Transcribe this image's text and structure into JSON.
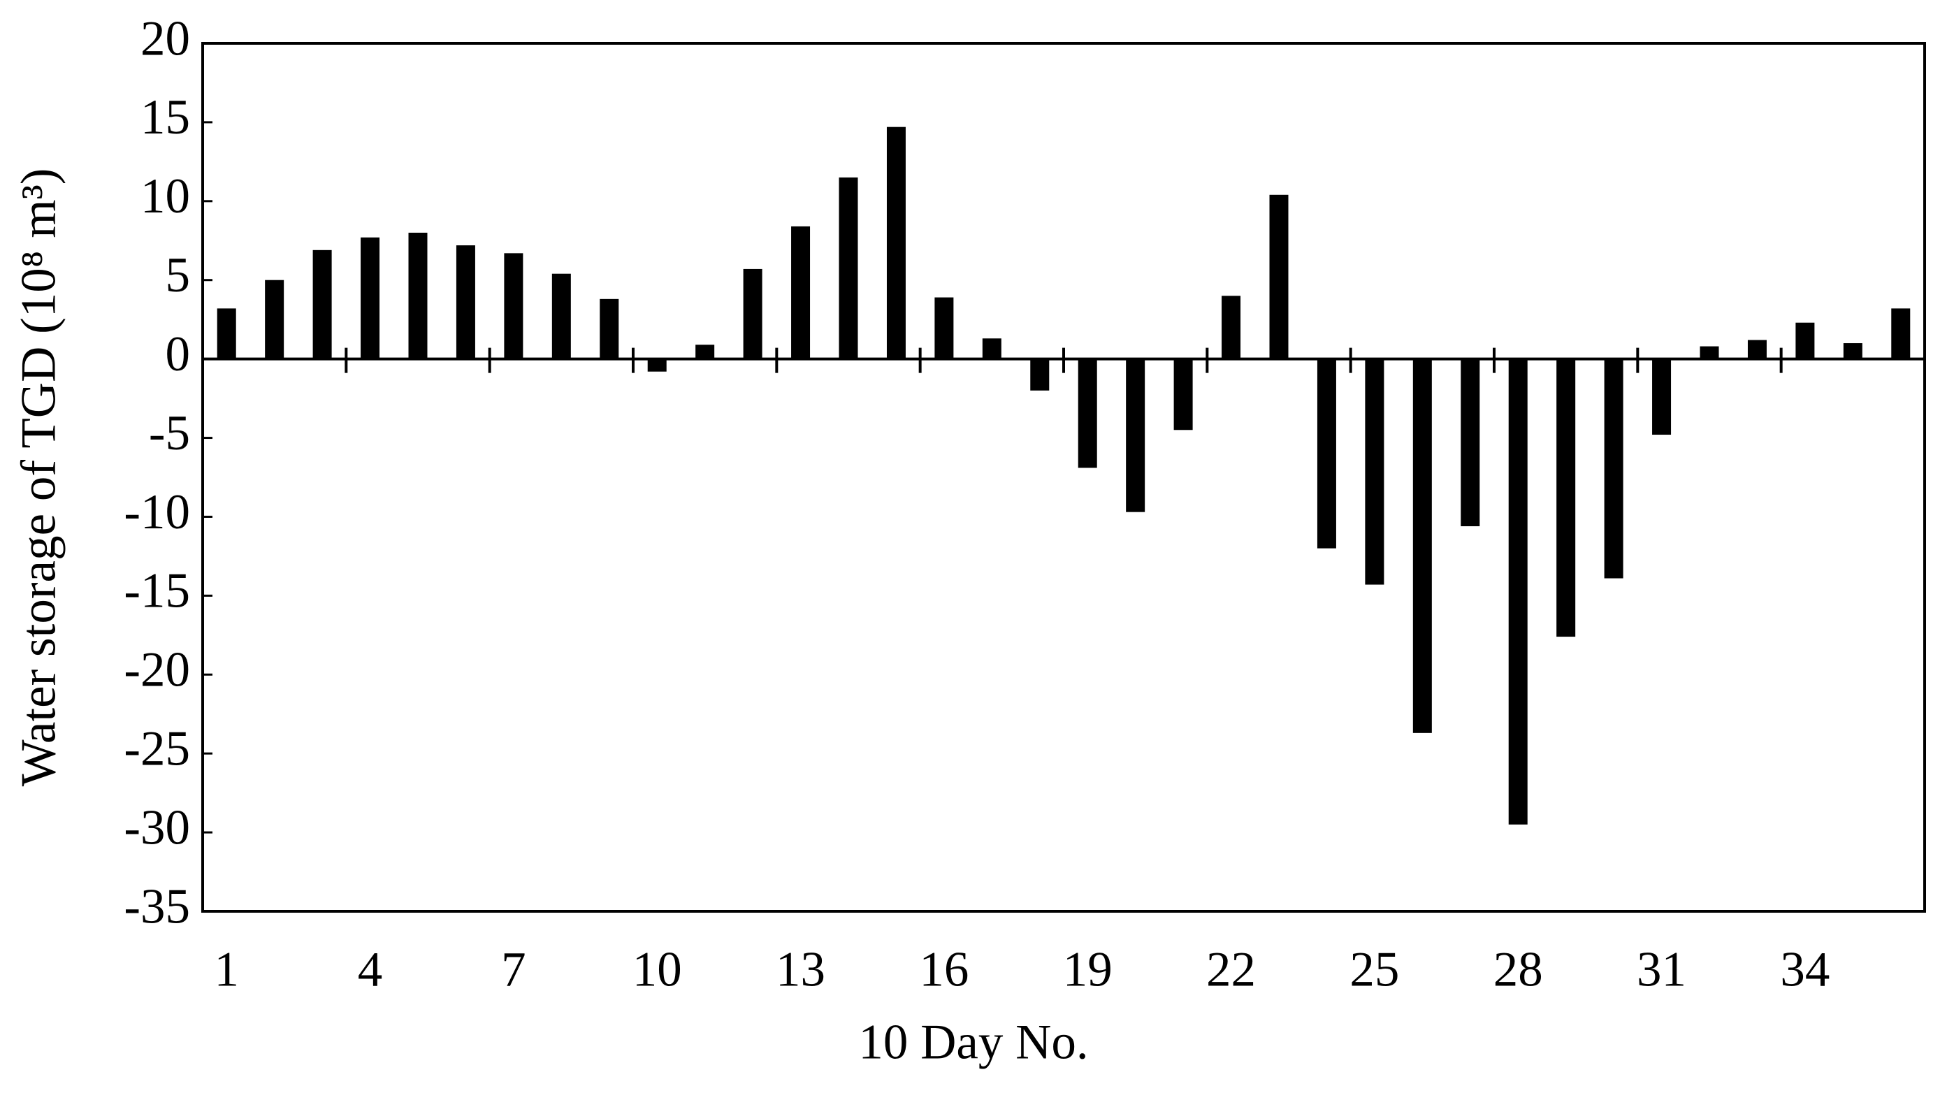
{
  "chart_data": {
    "type": "bar",
    "xlabel": "10 Day No.",
    "ylabel": "Water storage of TGD (10⁸ m³)",
    "categories": [
      "1",
      null,
      null,
      "4",
      null,
      null,
      "7",
      null,
      null,
      "10",
      null,
      null,
      "13",
      null,
      null,
      "16",
      null,
      null,
      "19",
      null,
      null,
      "22",
      null,
      null,
      "25",
      null,
      null,
      "28",
      null,
      null,
      "31",
      null,
      null,
      "34",
      null,
      null
    ],
    "values": [
      3.2,
      5.0,
      6.9,
      7.7,
      8.0,
      7.2,
      6.7,
      5.4,
      3.8,
      -0.8,
      0.9,
      5.7,
      8.4,
      11.5,
      14.7,
      3.9,
      1.3,
      -2.0,
      -6.9,
      -9.7,
      -4.5,
      4.0,
      10.4,
      -12.0,
      -14.3,
      -23.7,
      -10.6,
      -29.5,
      -17.6,
      -13.9,
      -4.8,
      0.8,
      1.2,
      2.3,
      1.0,
      3.2
    ],
    "color": "#000000",
    "ylim": [
      -35,
      20
    ],
    "yticks": [
      -35,
      -30,
      -25,
      -20,
      -15,
      -10,
      -5,
      0,
      5,
      10,
      15,
      20
    ],
    "grid": false
  }
}
